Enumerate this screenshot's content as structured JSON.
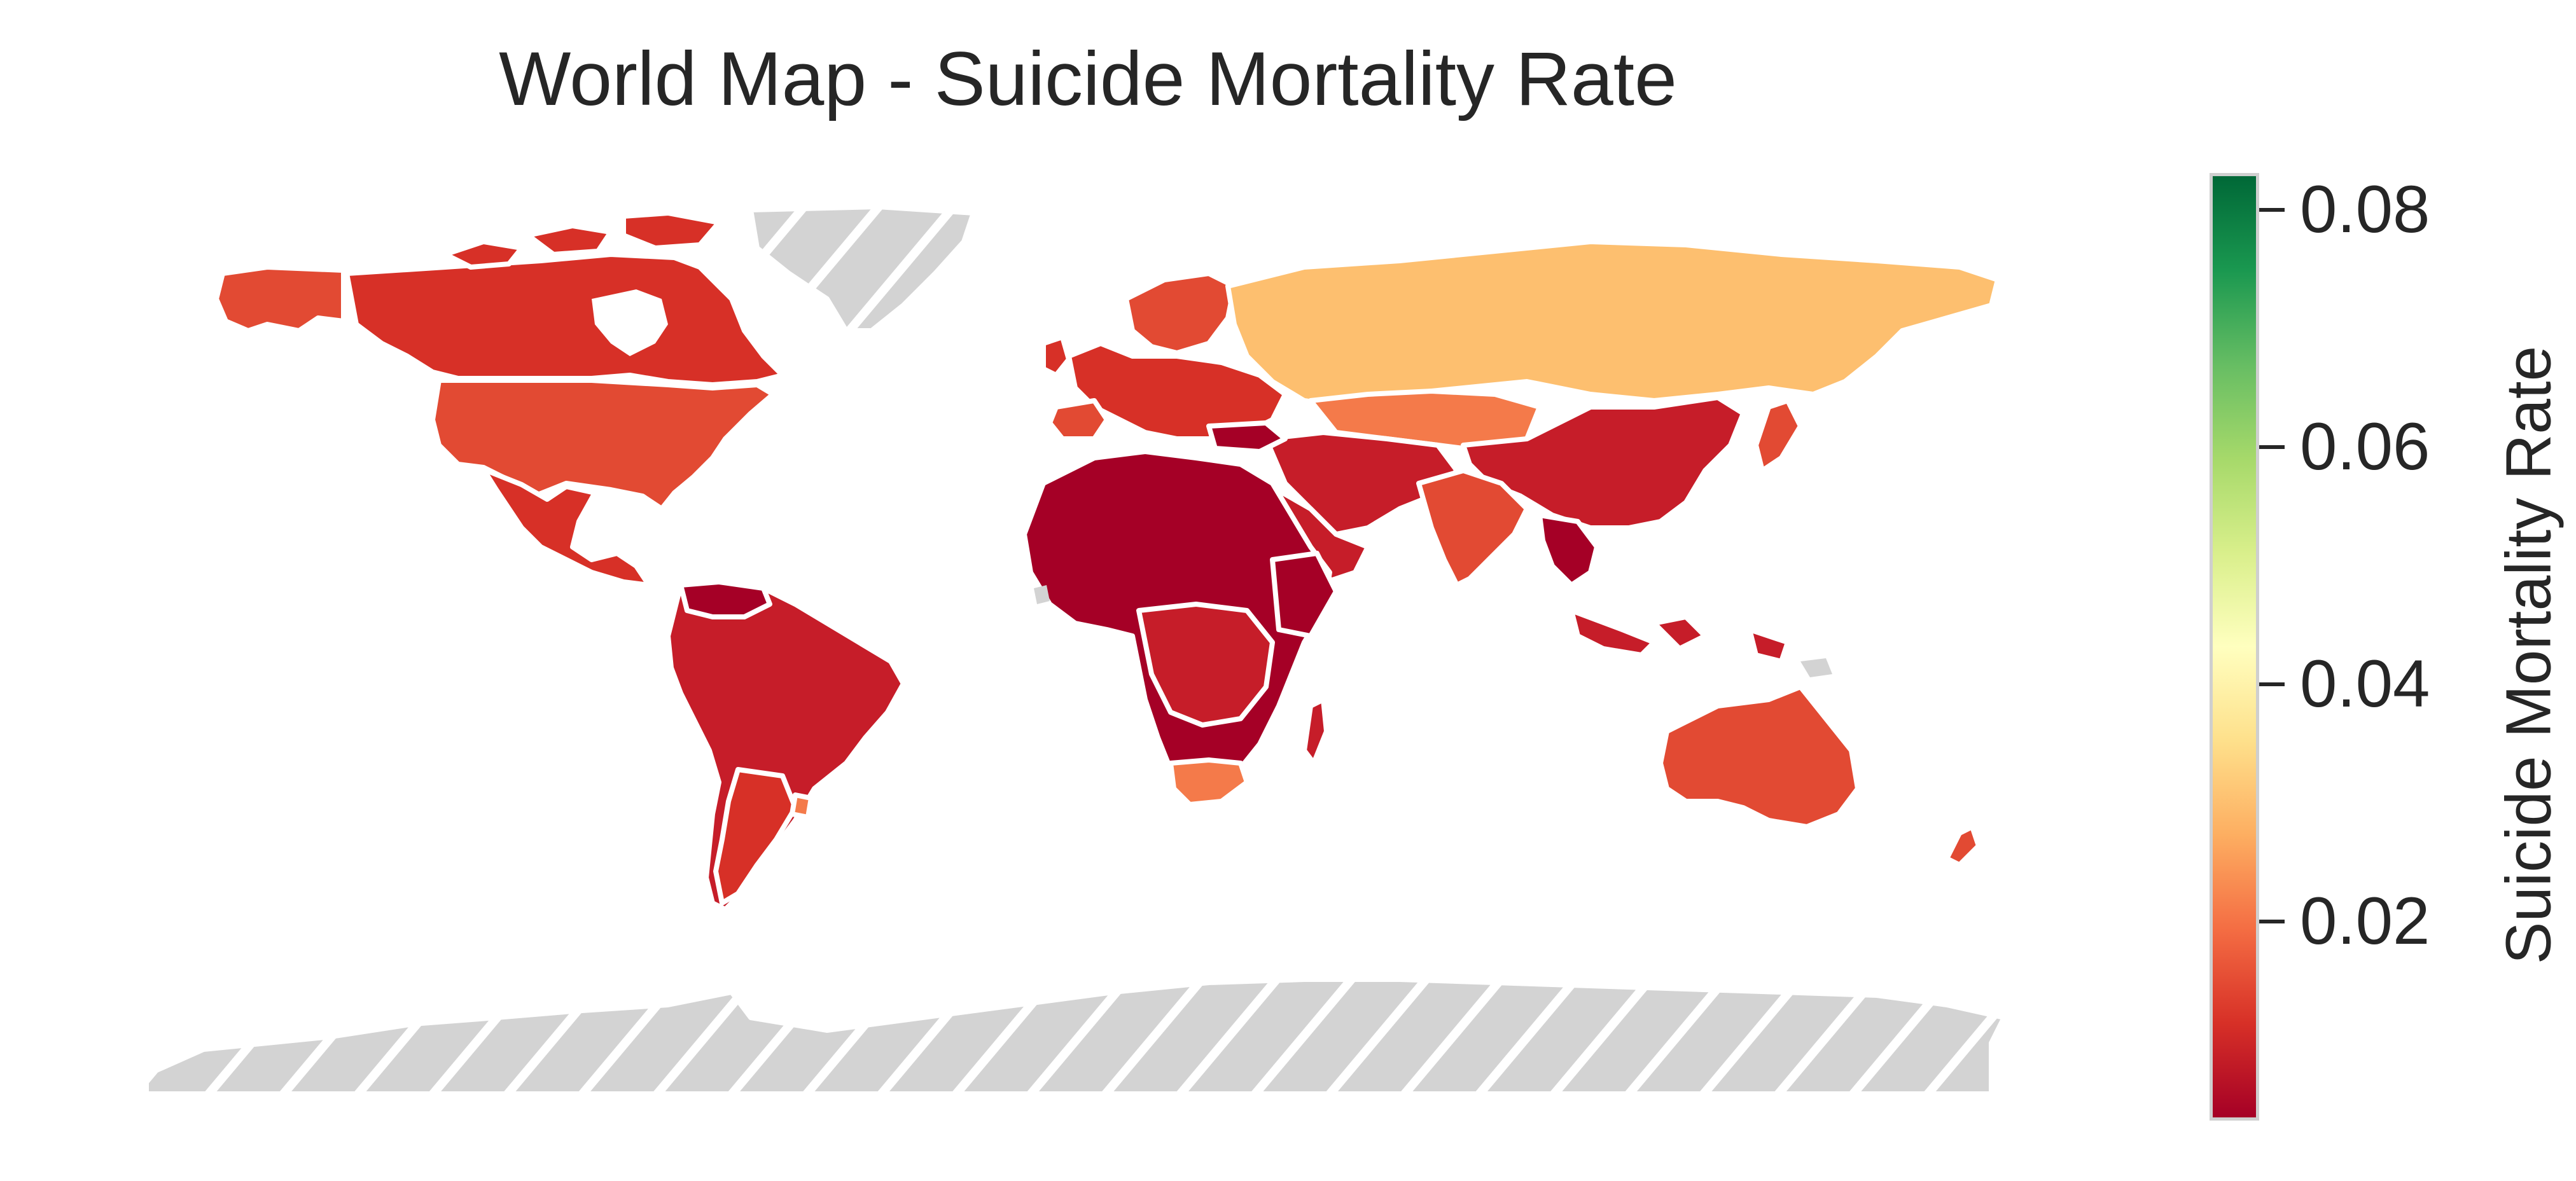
{
  "title": "World Map - Suicide Mortality Rate",
  "colorbar": {
    "label": "Suicide Mortality Rate",
    "colormap": "RdYlGn",
    "range": [
      0.002,
      0.082
    ],
    "ticks": [
      {
        "label": "0.08",
        "value": 0.08
      },
      {
        "label": "0.06",
        "value": 0.06
      },
      {
        "label": "0.04",
        "value": 0.04
      },
      {
        "label": "0.02",
        "value": 0.02
      }
    ]
  },
  "missing_data": {
    "color": "#d3d3d3",
    "pattern": "white diagonal hatching"
  },
  "colors": {
    "dark_red": "#a50026",
    "red": "#c61d29",
    "red_orange": "#d73027",
    "orange_red": "#e24a33",
    "orange": "#f47a4a",
    "light_orange": "#fdbf6f",
    "missing": "#d3d3d3",
    "border": "#ffffff"
  }
}
